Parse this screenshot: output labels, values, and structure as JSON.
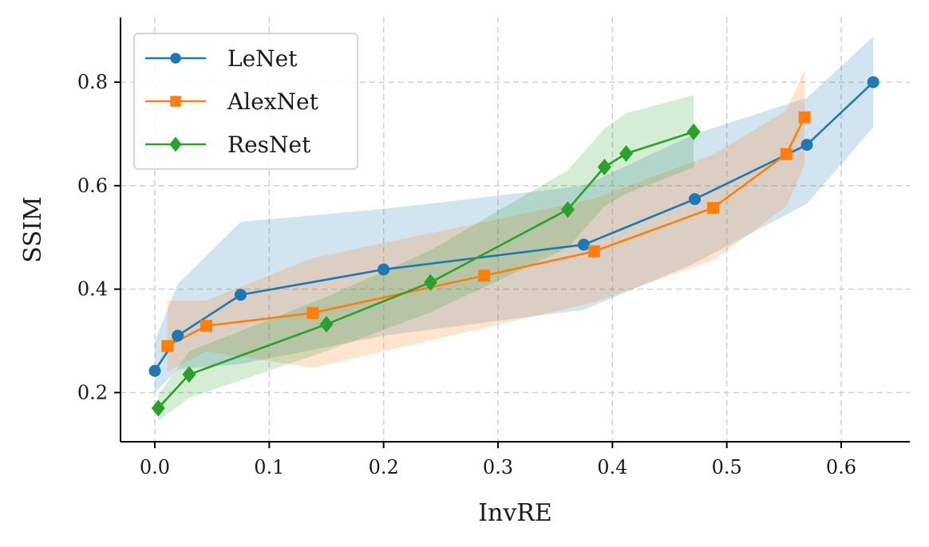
{
  "chart_data": {
    "type": "line",
    "title": "",
    "xlabel": "InvRE",
    "ylabel": "SSIM",
    "xlim": [
      -0.03,
      0.66
    ],
    "ylim": [
      0.105,
      0.925
    ],
    "xticks": [
      0.0,
      0.1,
      0.2,
      0.3,
      0.4,
      0.5,
      0.6
    ],
    "xtick_labels": [
      "0.0",
      "0.1",
      "0.2",
      "0.3",
      "0.4",
      "0.5",
      "0.6"
    ],
    "yticks": [
      0.2,
      0.4,
      0.6,
      0.8
    ],
    "ytick_labels": [
      "0.2",
      "0.4",
      "0.6",
      "0.8"
    ],
    "grid": true,
    "legend_position": "top-left",
    "series": [
      {
        "name": "LeNet",
        "color": "#1f77b4",
        "marker": "circle",
        "x": [
          0.0,
          0.02,
          0.075,
          0.2,
          0.375,
          0.472,
          0.57,
          0.628
        ],
        "y": [
          0.242,
          0.31,
          0.389,
          0.438,
          0.486,
          0.574,
          0.679,
          0.8
        ],
        "band_upper": [
          0.3,
          0.41,
          0.53,
          0.555,
          0.6,
          0.7,
          0.77,
          0.888
        ],
        "band_lower": [
          0.2,
          0.245,
          0.255,
          0.31,
          0.36,
          0.45,
          0.565,
          0.713
        ]
      },
      {
        "name": "AlexNet",
        "color": "#ff7f0e",
        "marker": "square",
        "x": [
          0.011,
          0.045,
          0.138,
          0.288,
          0.384,
          0.488,
          0.552,
          0.568
        ],
        "y": [
          0.29,
          0.329,
          0.354,
          0.426,
          0.473,
          0.557,
          0.661,
          0.732
        ],
        "band_upper": [
          0.378,
          0.378,
          0.46,
          0.53,
          0.575,
          0.66,
          0.745,
          0.825
        ],
        "band_lower": [
          0.24,
          0.28,
          0.248,
          0.325,
          0.375,
          0.455,
          0.56,
          0.64
        ]
      },
      {
        "name": "ResNet",
        "color": "#2ca02c",
        "marker": "diamond",
        "x": [
          0.003,
          0.03,
          0.15,
          0.241,
          0.361,
          0.393,
          0.412,
          0.471
        ],
        "y": [
          0.17,
          0.235,
          0.332,
          0.413,
          0.554,
          0.636,
          0.662,
          0.704
        ],
        "band_upper": [
          0.195,
          0.28,
          0.385,
          0.475,
          0.63,
          0.71,
          0.74,
          0.775
        ],
        "band_lower": [
          0.145,
          0.19,
          0.28,
          0.355,
          0.48,
          0.56,
          0.585,
          0.635
        ]
      }
    ]
  }
}
